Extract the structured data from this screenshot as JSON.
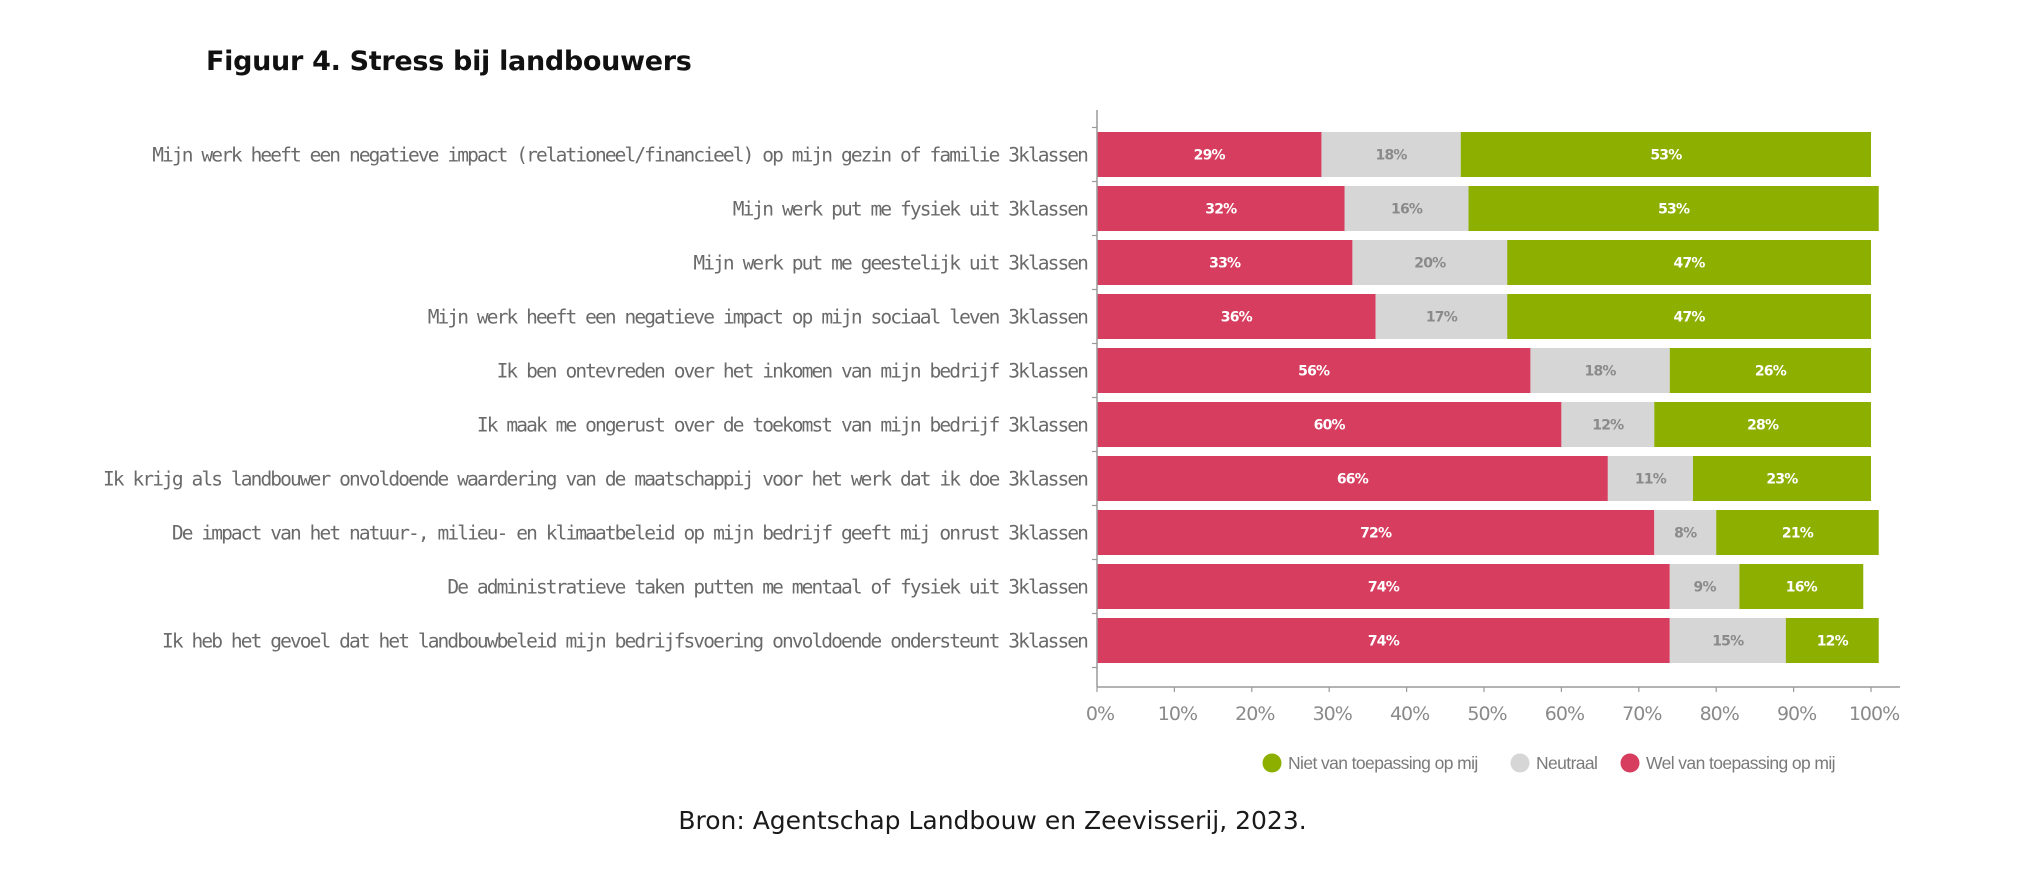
{
  "figure": {
    "title": "Figuur 4. Stress bij landbouwers",
    "source": "Bron: Agentschap Landbouw en Zeevisserij, 2023."
  },
  "chart_data": {
    "type": "bar",
    "orientation": "horizontal",
    "stacked": true,
    "normalized": "percent",
    "title": "Figuur 4. Stress bij landbouwers",
    "xlabel": "",
    "ylabel": "",
    "xlim": [
      0,
      100
    ],
    "x_ticks": [
      "0%",
      "10%",
      "20%",
      "30%",
      "40%",
      "50%",
      "60%",
      "70%",
      "80%",
      "90%",
      "100%"
    ],
    "grid": false,
    "legend_position": "bottom-right",
    "categories": [
      "Mijn werk heeft een negatieve impact (relationeel/financieel) op mijn gezin of familie 3klassen",
      "Mijn werk put me fysiek uit 3klassen",
      "Mijn werk put me geestelijk uit 3klassen",
      "Mijn werk heeft een negatieve impact op mijn sociaal leven 3klassen",
      "Ik ben ontevreden over het inkomen van mijn bedrijf 3klassen",
      "Ik maak me ongerust over de toekomst van mijn bedrijf 3klassen",
      "Ik krijg als landbouwer onvoldoende waardering van de maatschappij voor het werk dat ik doe 3klassen",
      "De impact van het natuur-, milieu- en klimaatbeleid op mijn bedrijf geeft mij onrust 3klassen",
      "De administratieve taken putten me mentaal of fysiek uit 3klassen",
      "Ik heb het gevoel dat het landbouwbeleid mijn bedrijfsvoering onvoldoende ondersteunt 3klassen"
    ],
    "series": [
      {
        "name": "Wel van toepassing op mij",
        "color": "#D63D5F",
        "label_color": "#ffffff",
        "values": [
          29,
          32,
          33,
          36,
          56,
          60,
          66,
          72,
          74,
          74
        ]
      },
      {
        "name": "Neutraal",
        "color": "#D6D6D6",
        "label_color": "#8a8a8a",
        "values": [
          18,
          16,
          20,
          17,
          18,
          12,
          11,
          8,
          9,
          15
        ]
      },
      {
        "name": "Niet van toepassing op mij",
        "color": "#8CAF00",
        "label_color": "#ffffff",
        "values": [
          53,
          53,
          47,
          47,
          26,
          28,
          23,
          21,
          16,
          12
        ]
      }
    ],
    "legend": [
      {
        "name": "Niet van toepassing op mij",
        "color": "#8CAF00"
      },
      {
        "name": "Neutraal",
        "color": "#D6D6D6"
      },
      {
        "name": "Wel van toepassing op mij",
        "color": "#D63D5F"
      }
    ]
  }
}
